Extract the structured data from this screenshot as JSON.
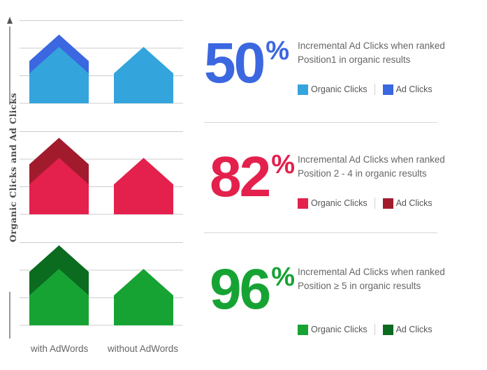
{
  "chart_data": {
    "type": "area",
    "y_axis_label": "Organic Clicks and Ad Clicks",
    "categories": [
      "with AdWords",
      "without AdWords"
    ],
    "legend": [
      "Organic Clicks",
      "Ad Clicks"
    ],
    "panels": [
      {
        "percent": "50",
        "percent_sign": "%",
        "description_line1": "Incremental Ad Clicks when ranked",
        "description_line2": "Position1 in organic results",
        "organic_color": "#34a4dc",
        "ad_color": "#3b67e0",
        "text_color": "#3b67e0",
        "series": [
          {
            "name": "Organic Clicks",
            "values": [
              100,
              100
            ]
          },
          {
            "name": "Ad Clicks",
            "values": [
              50,
              0
            ]
          }
        ]
      },
      {
        "percent": "82",
        "percent_sign": "%",
        "description_line1": "Incremental Ad Clicks when ranked",
        "description_line2": "Position 2 - 4 in organic results",
        "organic_color": "#e4204d",
        "ad_color": "#a11b2d",
        "text_color": "#e4204d",
        "series": [
          {
            "name": "Organic Clicks",
            "values": [
              100,
              100
            ]
          },
          {
            "name": "Ad Clicks",
            "values": [
              82,
              0
            ]
          }
        ]
      },
      {
        "percent": "96",
        "percent_sign": "%",
        "description_line1": "Incremental Ad Clicks when ranked",
        "description_line2": "Position ≥ 5 in organic results",
        "organic_color": "#16a334",
        "ad_color": "#0b6b1f",
        "text_color": "#16a334",
        "series": [
          {
            "name": "Organic Clicks",
            "values": [
              100,
              100
            ]
          },
          {
            "name": "Ad Clicks",
            "values": [
              96,
              0
            ]
          }
        ]
      }
    ]
  }
}
